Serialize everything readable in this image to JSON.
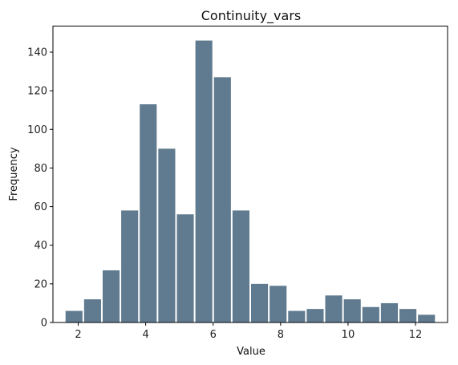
{
  "chart_data": {
    "type": "bar",
    "title": "Continuity_vars",
    "xlabel": "Value",
    "ylabel": "Frequency",
    "bar_color": "#607b8f",
    "xlim": [
      1.25,
      12.95
    ],
    "ylim": [
      0,
      153.5
    ],
    "xticks": [
      2,
      4,
      6,
      8,
      10,
      12
    ],
    "yticks": [
      0,
      20,
      40,
      60,
      80,
      100,
      120,
      140
    ],
    "grid": false,
    "bin_edges": [
      1.6,
      2.15,
      2.7,
      3.25,
      3.8,
      4.35,
      4.9,
      5.45,
      6.0,
      6.55,
      7.1,
      7.65,
      8.2,
      8.75,
      9.3,
      9.85,
      10.4,
      10.95,
      11.5,
      12.05,
      12.6
    ],
    "values": [
      6,
      12,
      27,
      58,
      113,
      90,
      56,
      146,
      127,
      58,
      20,
      19,
      6,
      7,
      14,
      12,
      8,
      10,
      7,
      4
    ]
  }
}
